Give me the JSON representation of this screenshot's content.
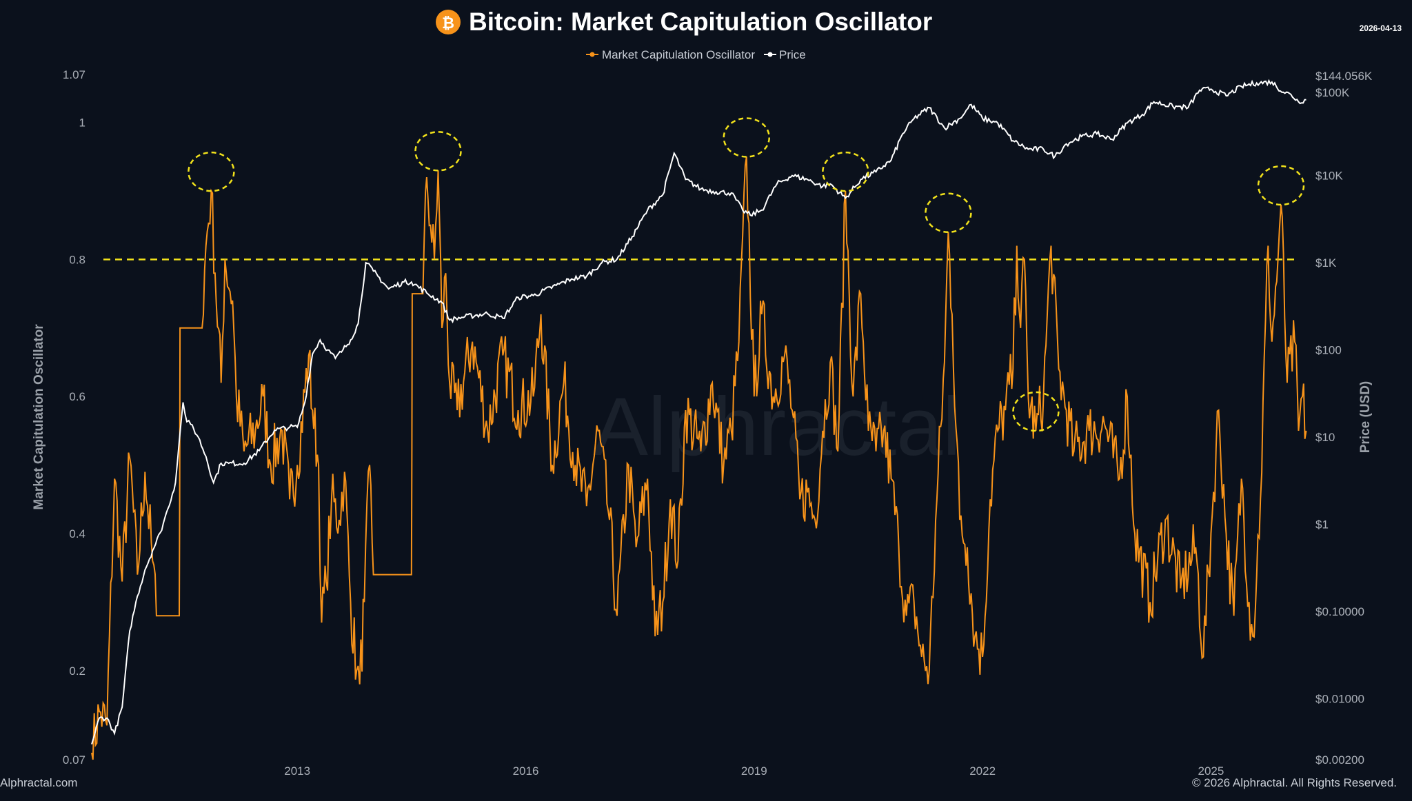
{
  "header": {
    "title": "Bitcoin: Market Capitulation Oscillator",
    "date": "2026-04-13",
    "logo_glyph": "₿"
  },
  "legend": {
    "items": [
      {
        "label": "Market Capitulation Oscillator",
        "color": "#f7931a"
      },
      {
        "label": "Price",
        "color": "#ffffff"
      }
    ]
  },
  "footer": {
    "left": "Alphractal.com",
    "right": "© 2026 Alphractal. All Rights Reserved."
  },
  "watermark": "Alphractal",
  "chart_data": {
    "type": "line",
    "title": "Bitcoin: Market Capitulation Oscillator",
    "xlabel": "",
    "ylabel": "Market Capitulation Oscillator",
    "y2label": "Price (USD)",
    "xlim": [
      2010.3,
      2026.3
    ],
    "ylim": [
      0.07,
      1.07
    ],
    "y2_log_range": [
      0.002,
      144056
    ],
    "x_ticks": [
      "2013",
      "2016",
      "2019",
      "2022",
      "2025"
    ],
    "x_tick_values": [
      2013,
      2016,
      2019,
      2022,
      2025
    ],
    "y_ticks": [
      "0.07",
      "0.2",
      "0.4",
      "0.6",
      "0.8",
      "1",
      "1.07"
    ],
    "y_tick_values": [
      0.07,
      0.2,
      0.4,
      0.6,
      0.8,
      1.0,
      1.07
    ],
    "y2_ticks": [
      "$0.00200",
      "$0.01000",
      "$0.10000",
      "$1",
      "$10",
      "$100",
      "$1K",
      "$10K",
      "$100K",
      "$144.056K"
    ],
    "y2_tick_values": [
      0.002,
      0.01,
      0.1,
      1,
      10,
      100,
      1000,
      10000,
      100000,
      144056
    ],
    "threshold": 0.8,
    "colors": {
      "oscillator": "#f7931a",
      "price": "#ffffff",
      "threshold": "#f2e21b",
      "highlight": "#f2e21b"
    },
    "series": [
      {
        "name": "Market Capitulation Oscillator",
        "axis": "left",
        "points": [
          [
            2010.3,
            0.08
          ],
          [
            2010.4,
            0.14
          ],
          [
            2010.5,
            0.12
          ],
          [
            2010.6,
            0.48
          ],
          [
            2010.7,
            0.33
          ],
          [
            2010.8,
            0.51
          ],
          [
            2010.9,
            0.34
          ],
          [
            2011.0,
            0.49
          ],
          [
            2011.1,
            0.36
          ],
          [
            2011.15,
            0.28
          ],
          [
            2011.3,
            0.28
          ],
          [
            2011.45,
            0.28
          ],
          [
            2011.46,
            0.7
          ],
          [
            2011.75,
            0.7
          ],
          [
            2011.8,
            0.82
          ],
          [
            2011.87,
            0.9
          ],
          [
            2011.92,
            0.78
          ],
          [
            2012.0,
            0.62
          ],
          [
            2012.05,
            0.8
          ],
          [
            2012.15,
            0.74
          ],
          [
            2012.2,
            0.6
          ],
          [
            2012.3,
            0.52
          ],
          [
            2012.45,
            0.55
          ],
          [
            2012.55,
            0.6
          ],
          [
            2012.65,
            0.5
          ],
          [
            2012.8,
            0.55
          ],
          [
            2012.9,
            0.45
          ],
          [
            2013.0,
            0.5
          ],
          [
            2013.15,
            0.66
          ],
          [
            2013.2,
            0.58
          ],
          [
            2013.28,
            0.5
          ],
          [
            2013.32,
            0.27
          ],
          [
            2013.38,
            0.33
          ],
          [
            2013.45,
            0.45
          ],
          [
            2013.55,
            0.42
          ],
          [
            2013.62,
            0.49
          ],
          [
            2013.7,
            0.3
          ],
          [
            2013.78,
            0.2
          ],
          [
            2013.82,
            0.18
          ],
          [
            2013.88,
            0.3
          ],
          [
            2013.95,
            0.5
          ],
          [
            2014.0,
            0.34
          ],
          [
            2014.2,
            0.34
          ],
          [
            2014.5,
            0.34
          ],
          [
            2014.51,
            0.75
          ],
          [
            2014.65,
            0.75
          ],
          [
            2014.7,
            0.92
          ],
          [
            2014.75,
            0.85
          ],
          [
            2014.8,
            0.8
          ],
          [
            2014.85,
            0.93
          ],
          [
            2014.9,
            0.7
          ],
          [
            2014.95,
            0.78
          ],
          [
            2015.0,
            0.62
          ],
          [
            2015.1,
            0.58
          ],
          [
            2015.3,
            0.68
          ],
          [
            2015.5,
            0.55
          ],
          [
            2015.7,
            0.66
          ],
          [
            2015.9,
            0.58
          ],
          [
            2016.1,
            0.6
          ],
          [
            2016.2,
            0.72
          ],
          [
            2016.35,
            0.5
          ],
          [
            2016.5,
            0.62
          ],
          [
            2016.65,
            0.5
          ],
          [
            2016.8,
            0.44
          ],
          [
            2016.95,
            0.55
          ],
          [
            2017.1,
            0.42
          ],
          [
            2017.2,
            0.28
          ],
          [
            2017.35,
            0.5
          ],
          [
            2017.45,
            0.38
          ],
          [
            2017.6,
            0.48
          ],
          [
            2017.7,
            0.25
          ],
          [
            2017.8,
            0.3
          ],
          [
            2017.9,
            0.45
          ],
          [
            2018.0,
            0.36
          ],
          [
            2018.1,
            0.58
          ],
          [
            2018.3,
            0.52
          ],
          [
            2018.45,
            0.62
          ],
          [
            2018.6,
            0.5
          ],
          [
            2018.7,
            0.55
          ],
          [
            2018.8,
            0.68
          ],
          [
            2018.9,
            0.95
          ],
          [
            2019.0,
            0.6
          ],
          [
            2019.1,
            0.72
          ],
          [
            2019.25,
            0.6
          ],
          [
            2019.4,
            0.66
          ],
          [
            2019.5,
            0.58
          ],
          [
            2019.6,
            0.45
          ],
          [
            2019.7,
            0.46
          ],
          [
            2019.8,
            0.42
          ],
          [
            2019.9,
            0.55
          ],
          [
            2020.0,
            0.65
          ],
          [
            2020.1,
            0.52
          ],
          [
            2020.2,
            0.9
          ],
          [
            2020.3,
            0.6
          ],
          [
            2020.4,
            0.75
          ],
          [
            2020.5,
            0.55
          ],
          [
            2020.6,
            0.52
          ],
          [
            2020.7,
            0.55
          ],
          [
            2020.8,
            0.48
          ],
          [
            2020.9,
            0.38
          ],
          [
            2021.0,
            0.28
          ],
          [
            2021.1,
            0.3
          ],
          [
            2021.2,
            0.22
          ],
          [
            2021.3,
            0.2
          ],
          [
            2021.4,
            0.45
          ],
          [
            2021.5,
            0.65
          ],
          [
            2021.55,
            0.84
          ],
          [
            2021.6,
            0.72
          ],
          [
            2021.7,
            0.42
          ],
          [
            2021.8,
            0.38
          ],
          [
            2021.9,
            0.25
          ],
          [
            2022.0,
            0.22
          ],
          [
            2022.1,
            0.45
          ],
          [
            2022.2,
            0.55
          ],
          [
            2022.3,
            0.58
          ],
          [
            2022.4,
            0.64
          ],
          [
            2022.45,
            0.82
          ],
          [
            2022.5,
            0.7
          ],
          [
            2022.55,
            0.8
          ],
          [
            2022.6,
            0.6
          ],
          [
            2022.7,
            0.55
          ],
          [
            2022.8,
            0.6
          ],
          [
            2022.9,
            0.82
          ],
          [
            2023.0,
            0.64
          ],
          [
            2023.1,
            0.58
          ],
          [
            2023.2,
            0.52
          ],
          [
            2023.4,
            0.55
          ],
          [
            2023.6,
            0.56
          ],
          [
            2023.8,
            0.48
          ],
          [
            2023.9,
            0.6
          ],
          [
            2024.0,
            0.4
          ],
          [
            2024.2,
            0.3
          ],
          [
            2024.4,
            0.42
          ],
          [
            2024.6,
            0.32
          ],
          [
            2024.8,
            0.38
          ],
          [
            2024.9,
            0.22
          ],
          [
            2025.0,
            0.4
          ],
          [
            2025.1,
            0.58
          ],
          [
            2025.2,
            0.4
          ],
          [
            2025.3,
            0.28
          ],
          [
            2025.4,
            0.48
          ],
          [
            2025.5,
            0.3
          ],
          [
            2025.55,
            0.25
          ],
          [
            2025.65,
            0.45
          ],
          [
            2025.75,
            0.82
          ],
          [
            2025.8,
            0.68
          ],
          [
            2025.88,
            0.8
          ],
          [
            2025.92,
            0.88
          ],
          [
            2026.0,
            0.62
          ],
          [
            2026.1,
            0.68
          ],
          [
            2026.15,
            0.55
          ],
          [
            2026.2,
            0.6
          ],
          [
            2026.25,
            0.55
          ]
        ]
      },
      {
        "name": "Price",
        "axis": "right",
        "points": [
          [
            2010.3,
            0.003
          ],
          [
            2010.4,
            0.006
          ],
          [
            2010.5,
            0.006
          ],
          [
            2010.6,
            0.004
          ],
          [
            2010.7,
            0.008
          ],
          [
            2010.8,
            0.06
          ],
          [
            2010.9,
            0.15
          ],
          [
            2011.0,
            0.3
          ],
          [
            2011.1,
            0.5
          ],
          [
            2011.2,
            0.8
          ],
          [
            2011.3,
            1.5
          ],
          [
            2011.4,
            3
          ],
          [
            2011.45,
            9
          ],
          [
            2011.5,
            25
          ],
          [
            2011.55,
            15
          ],
          [
            2011.6,
            14
          ],
          [
            2011.7,
            10
          ],
          [
            2011.8,
            6
          ],
          [
            2011.9,
            3
          ],
          [
            2012.0,
            5
          ],
          [
            2012.1,
            5
          ],
          [
            2012.3,
            5
          ],
          [
            2012.5,
            7
          ],
          [
            2012.7,
            12
          ],
          [
            2012.9,
            13
          ],
          [
            2013.0,
            13
          ],
          [
            2013.1,
            25
          ],
          [
            2013.2,
            90
          ],
          [
            2013.3,
            130
          ],
          [
            2013.4,
            100
          ],
          [
            2013.5,
            80
          ],
          [
            2013.6,
            100
          ],
          [
            2013.7,
            130
          ],
          [
            2013.8,
            200
          ],
          [
            2013.9,
            1000
          ],
          [
            2014.0,
            800
          ],
          [
            2014.2,
            500
          ],
          [
            2014.4,
            600
          ],
          [
            2014.5,
            600
          ],
          [
            2014.7,
            450
          ],
          [
            2014.9,
            350
          ],
          [
            2015.0,
            220
          ],
          [
            2015.2,
            240
          ],
          [
            2015.5,
            260
          ],
          [
            2015.7,
            230
          ],
          [
            2015.9,
            400
          ],
          [
            2016.1,
            420
          ],
          [
            2016.4,
            550
          ],
          [
            2016.6,
            650
          ],
          [
            2016.8,
            700
          ],
          [
            2017.0,
            1000
          ],
          [
            2017.2,
            1100
          ],
          [
            2017.4,
            2000
          ],
          [
            2017.6,
            4000
          ],
          [
            2017.8,
            6000
          ],
          [
            2017.95,
            18000
          ],
          [
            2018.1,
            9000
          ],
          [
            2018.3,
            7000
          ],
          [
            2018.5,
            6500
          ],
          [
            2018.7,
            6300
          ],
          [
            2018.85,
            4000
          ],
          [
            2018.95,
            3500
          ],
          [
            2019.1,
            4000
          ],
          [
            2019.3,
            8000
          ],
          [
            2019.5,
            10000
          ],
          [
            2019.7,
            9000
          ],
          [
            2019.9,
            7500
          ],
          [
            2020.0,
            8000
          ],
          [
            2020.2,
            5500
          ],
          [
            2020.4,
            9000
          ],
          [
            2020.6,
            11000
          ],
          [
            2020.8,
            15000
          ],
          [
            2020.95,
            30000
          ],
          [
            2021.1,
            45000
          ],
          [
            2021.3,
            60000
          ],
          [
            2021.5,
            35000
          ],
          [
            2021.7,
            45000
          ],
          [
            2021.85,
            65000
          ],
          [
            2022.0,
            45000
          ],
          [
            2022.2,
            40000
          ],
          [
            2022.4,
            25000
          ],
          [
            2022.6,
            20000
          ],
          [
            2022.8,
            20000
          ],
          [
            2022.95,
            16500
          ],
          [
            2023.1,
            23000
          ],
          [
            2023.3,
            28000
          ],
          [
            2023.5,
            30000
          ],
          [
            2023.7,
            26000
          ],
          [
            2023.9,
            40000
          ],
          [
            2024.1,
            50000
          ],
          [
            2024.25,
            70000
          ],
          [
            2024.5,
            62000
          ],
          [
            2024.7,
            60000
          ],
          [
            2024.85,
            95000
          ],
          [
            2025.0,
            98000
          ],
          [
            2025.2,
            82000
          ],
          [
            2025.4,
            105000
          ],
          [
            2025.6,
            115000
          ],
          [
            2025.8,
            118000
          ],
          [
            2025.95,
            90000
          ],
          [
            2026.05,
            85000
          ],
          [
            2026.15,
            70000
          ],
          [
            2026.25,
            74000
          ]
        ]
      }
    ],
    "highlighted_peaks": [
      2011.87,
      2014.85,
      2018.9,
      2020.2,
      2021.55,
      2022.7,
      2025.92
    ]
  }
}
